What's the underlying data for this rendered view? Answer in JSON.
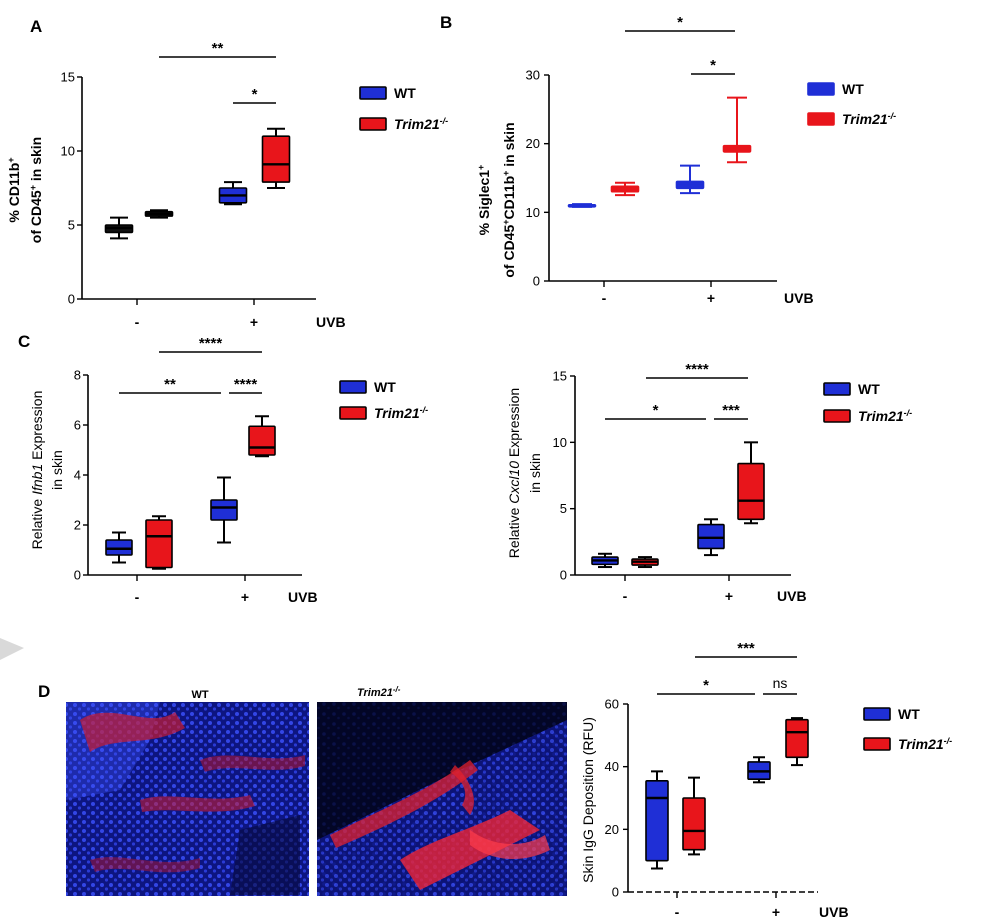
{
  "legend": {
    "wt": "WT",
    "ko": "Trim21",
    "ko_sup": "-/-"
  },
  "colors": {
    "wt": "#1f2fd6",
    "ko": "#e8151b",
    "wt_dark": "#0a0a8a",
    "ko_dark": "#7a0000"
  },
  "uvb_label": "UVB",
  "cat_minus": "-",
  "cat_plus": "+",
  "panel_d_images": {
    "wt_title": "WT",
    "ko_title": "Trim21",
    "ko_sup": "-/-"
  },
  "chart_data": [
    {
      "panel": "A",
      "type": "boxplot",
      "style": "minmax",
      "ylabel_line1": "% CD11b",
      "ylabel_line1_sup": "+",
      "ylabel_line2": "of CD45",
      "ylabel_line2_sup": "+",
      "ylabel_line2_tail": " in skin",
      "ylim": [
        0,
        15
      ],
      "yticks": [
        0,
        5,
        10,
        15
      ],
      "categories": [
        "-",
        "+"
      ],
      "x_title": "UVB",
      "boxes": [
        {
          "group": "-",
          "genotype": "WT",
          "min": 4.1,
          "q1": 4.5,
          "median": 4.8,
          "q3": 5.0,
          "max": 5.5
        },
        {
          "group": "-",
          "genotype": "Trim21",
          "min": 5.5,
          "q1": 5.6,
          "median": 5.75,
          "q3": 5.9,
          "max": 6.0
        },
        {
          "group": "+",
          "genotype": "WT",
          "min": 6.4,
          "q1": 6.5,
          "median": 7.0,
          "q3": 7.5,
          "max": 7.9
        },
        {
          "group": "+",
          "genotype": "Trim21",
          "min": 7.5,
          "q1": 7.9,
          "median": 9.1,
          "q3": 11.0,
          "max": 11.5
        }
      ],
      "significance": [
        {
          "label": "**",
          "from": "WT -",
          "to": "Trim21 +"
        },
        {
          "label": "*",
          "from": "WT +",
          "to": "Trim21 +"
        }
      ]
    },
    {
      "panel": "B",
      "type": "boxplot",
      "style": "minmax",
      "ylabel_line1": "% Siglec1",
      "ylabel_line1_sup": "+",
      "ylabel_line2": "of CD45",
      "ylabel_line2_sup": "+",
      "ylabel_line2_mid": "CD11b",
      "ylabel_line2_mid_sup": "+",
      "ylabel_line2_tail": " in skin",
      "ylim": [
        0,
        30
      ],
      "yticks": [
        0,
        10,
        20,
        30
      ],
      "categories": [
        "-",
        "+"
      ],
      "x_title": "UVB",
      "boxes": [
        {
          "group": "-",
          "genotype": "WT",
          "min": 10.8,
          "q1": 10.85,
          "median": 11.0,
          "q3": 11.1,
          "max": 11.2
        },
        {
          "group": "-",
          "genotype": "Trim21",
          "min": 12.5,
          "q1": 13.0,
          "median": 13.4,
          "q3": 13.8,
          "max": 14.3
        },
        {
          "group": "+",
          "genotype": "WT",
          "min": 12.8,
          "q1": 13.5,
          "median": 14.2,
          "q3": 14.5,
          "max": 16.8
        },
        {
          "group": "+",
          "genotype": "Trim21",
          "min": 17.3,
          "q1": 18.8,
          "median": 19.2,
          "q3": 19.7,
          "max": 26.7
        }
      ],
      "significance": [
        {
          "label": "*",
          "from": "WT -",
          "to": "Trim21 +"
        },
        {
          "label": "*",
          "from": "WT +",
          "to": "Trim21 +"
        }
      ]
    },
    {
      "panel": "C1",
      "type": "boxplot",
      "style": "whiskers",
      "ylabel_line1_pre": "Relative ",
      "ylabel_line1_it": "Ifnb1",
      "ylabel_line1_post": " Expression",
      "ylabel_line2": "in skin",
      "ylim": [
        0,
        8
      ],
      "yticks": [
        0,
        2,
        4,
        6,
        8
      ],
      "categories": [
        "-",
        "+"
      ],
      "x_title": "UVB",
      "boxes": [
        {
          "group": "-",
          "genotype": "WT",
          "min": 0.5,
          "q1": 0.8,
          "median": 1.05,
          "q3": 1.4,
          "max": 1.7
        },
        {
          "group": "-",
          "genotype": "Trim21",
          "min": 0.25,
          "q1": 0.3,
          "median": 1.55,
          "q3": 2.2,
          "max": 2.35
        },
        {
          "group": "+",
          "genotype": "WT",
          "min": 1.3,
          "q1": 2.2,
          "median": 2.7,
          "q3": 3.0,
          "max": 3.9
        },
        {
          "group": "+",
          "genotype": "Trim21",
          "min": 4.75,
          "q1": 4.8,
          "median": 5.1,
          "q3": 5.95,
          "max": 6.35
        }
      ],
      "significance": [
        {
          "label": "****",
          "from": "Trim21 -",
          "to": "Trim21 +"
        },
        {
          "label": "**",
          "from": "WT -",
          "to": "WT +"
        },
        {
          "label": "****",
          "from": "WT +",
          "to": "Trim21 +"
        }
      ]
    },
    {
      "panel": "C2",
      "type": "boxplot",
      "style": "whiskers",
      "ylabel_line1_pre": "Relative ",
      "ylabel_line1_it": "Cxcl10",
      "ylabel_line1_post": " Expression",
      "ylabel_line2": "in skin",
      "ylim": [
        0,
        15
      ],
      "yticks": [
        0,
        5,
        10,
        15
      ],
      "categories": [
        "-",
        "+"
      ],
      "x_title": "UVB",
      "boxes": [
        {
          "group": "-",
          "genotype": "WT",
          "min": 0.6,
          "q1": 0.8,
          "median": 1.1,
          "q3": 1.35,
          "max": 1.6
        },
        {
          "group": "-",
          "genotype": "Trim21",
          "min": 0.6,
          "q1": 0.75,
          "median": 1.0,
          "q3": 1.2,
          "max": 1.35
        },
        {
          "group": "+",
          "genotype": "WT",
          "min": 1.5,
          "q1": 2.0,
          "median": 2.8,
          "q3": 3.8,
          "max": 4.2
        },
        {
          "group": "+",
          "genotype": "Trim21",
          "min": 3.9,
          "q1": 4.2,
          "median": 5.6,
          "q3": 8.4,
          "max": 10.0
        }
      ],
      "significance": [
        {
          "label": "****",
          "from": "Trim21 -",
          "to": "Trim21 +"
        },
        {
          "label": "*",
          "from": "WT -",
          "to": "WT +"
        },
        {
          "label": "***",
          "from": "WT +",
          "to": "Trim21 +"
        }
      ]
    },
    {
      "panel": "D",
      "type": "boxplot",
      "style": "whiskers",
      "ylabel_line1": "Skin IgG Deposition (RFU)",
      "ylim": [
        0,
        60
      ],
      "yticks": [
        0,
        20,
        40,
        60
      ],
      "categories": [
        "-",
        "+"
      ],
      "x_title": "UVB",
      "boxes": [
        {
          "group": "-",
          "genotype": "WT",
          "min": 7.5,
          "q1": 10.0,
          "median": 30.0,
          "q3": 35.5,
          "max": 38.5
        },
        {
          "group": "-",
          "genotype": "Trim21",
          "min": 12.0,
          "q1": 13.5,
          "median": 19.5,
          "q3": 30.0,
          "max": 36.5
        },
        {
          "group": "+",
          "genotype": "WT",
          "min": 35.0,
          "q1": 36.0,
          "median": 38.5,
          "q3": 41.5,
          "max": 43.0
        },
        {
          "group": "+",
          "genotype": "Trim21",
          "min": 40.5,
          "q1": 43.0,
          "median": 51.0,
          "q3": 55.0,
          "max": 55.5
        }
      ],
      "significance": [
        {
          "label": "***",
          "from": "Trim21 -",
          "to": "Trim21 +"
        },
        {
          "label": "*",
          "from": "WT -",
          "to": "WT +"
        },
        {
          "label": "ns",
          "from": "WT +",
          "to": "Trim21 +"
        }
      ]
    }
  ]
}
